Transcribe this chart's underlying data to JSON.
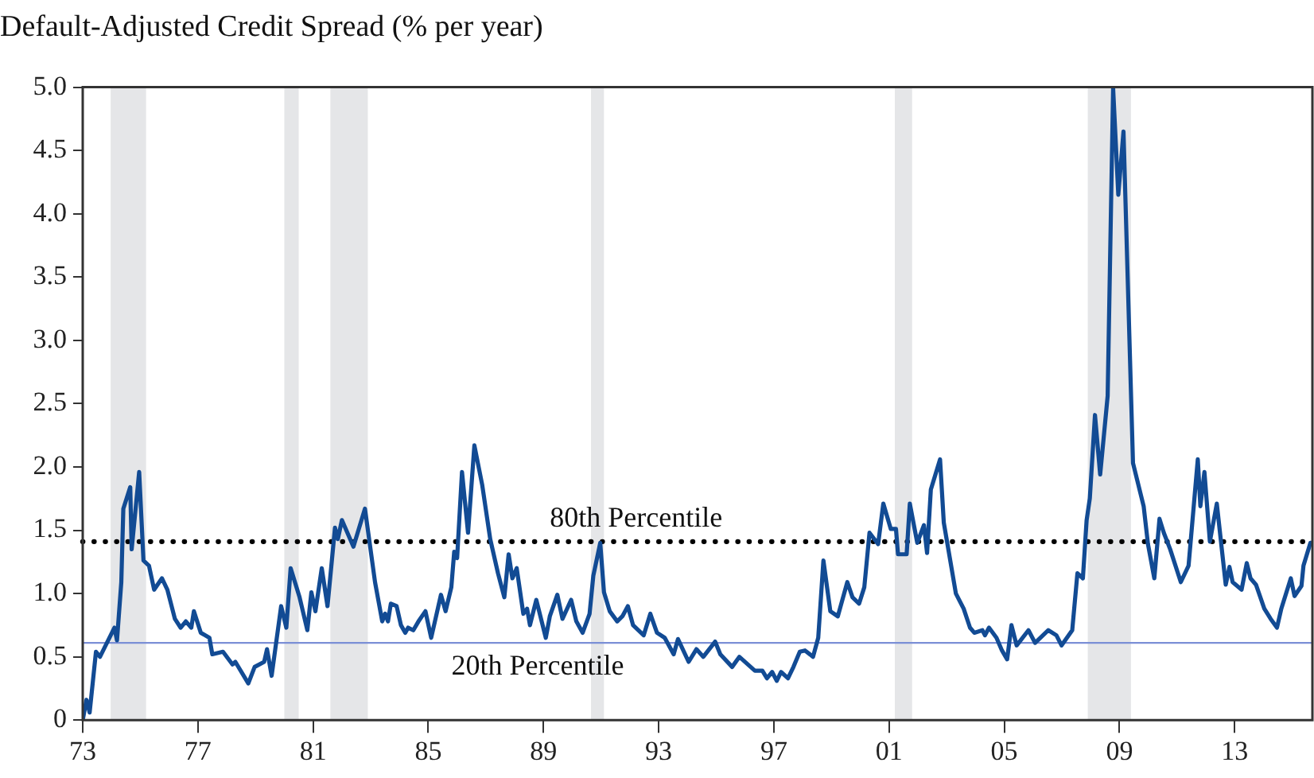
{
  "chart_data": {
    "type": "line",
    "title": "Default-Adjusted Credit Spread (% per year)",
    "x": [
      1973.0,
      1973.13,
      1973.24,
      1973.46,
      1973.6,
      1974.1,
      1974.19,
      1974.34,
      1974.41,
      1974.65,
      1974.7,
      1974.96,
      1975.11,
      1975.3,
      1975.48,
      1975.75,
      1975.94,
      1976.2,
      1976.4,
      1976.58,
      1976.77,
      1976.86,
      1977.1,
      1977.4,
      1977.5,
      1977.87,
      1978.2,
      1978.3,
      1978.75,
      1978.97,
      1979.3,
      1979.4,
      1979.56,
      1979.89,
      1980.07,
      1980.22,
      1980.53,
      1980.8,
      1980.94,
      1981.08,
      1981.3,
      1981.5,
      1981.76,
      1981.86,
      1982.0,
      1982.4,
      1982.8,
      1983.15,
      1983.4,
      1983.5,
      1983.6,
      1983.7,
      1983.9,
      1984.05,
      1984.2,
      1984.3,
      1984.48,
      1984.66,
      1984.9,
      1985.1,
      1985.44,
      1985.6,
      1985.8,
      1985.9,
      1986.0,
      1986.17,
      1986.38,
      1986.6,
      1986.87,
      1987.15,
      1987.42,
      1987.64,
      1987.79,
      1987.92,
      1988.07,
      1988.3,
      1988.43,
      1988.53,
      1988.75,
      1989.08,
      1989.22,
      1989.48,
      1989.66,
      1989.96,
      1990.14,
      1990.36,
      1990.6,
      1990.73,
      1990.97,
      1991.1,
      1991.3,
      1991.56,
      1991.74,
      1991.93,
      1992.11,
      1992.48,
      1992.71,
      1992.94,
      1993.21,
      1993.52,
      1993.67,
      1994.04,
      1994.31,
      1994.55,
      1994.96,
      1995.14,
      1995.55,
      1995.8,
      1996.34,
      1996.6,
      1996.76,
      1996.94,
      1997.1,
      1997.25,
      1997.49,
      1997.68,
      1997.9,
      1998.08,
      1998.36,
      1998.54,
      1998.72,
      1998.96,
      1999.22,
      1999.55,
      1999.73,
      1999.96,
      2000.14,
      2000.32,
      2000.62,
      2000.8,
      2001.06,
      2001.24,
      2001.31,
      2001.61,
      2001.72,
      2001.98,
      2002.21,
      2002.32,
      2002.45,
      2002.77,
      2002.9,
      2003.32,
      2003.59,
      2003.81,
      2003.96,
      2004.24,
      2004.33,
      2004.47,
      2004.73,
      2004.92,
      2005.1,
      2005.25,
      2005.43,
      2005.84,
      2006.07,
      2006.53,
      2006.81,
      2006.99,
      2007.36,
      2007.54,
      2007.73,
      2007.86,
      2007.97,
      2008.15,
      2008.33,
      2008.59,
      2008.78,
      2008.96,
      2009.14,
      2009.47,
      2009.84,
      2009.99,
      2010.21,
      2010.39,
      2010.54,
      2010.76,
      2011.13,
      2011.4,
      2011.72,
      2011.81,
      2011.95,
      2012.14,
      2012.38,
      2012.69,
      2012.82,
      2012.93,
      2013.24,
      2013.42,
      2013.55,
      2013.74,
      2014.03,
      2014.25,
      2014.47,
      2014.62,
      2014.95,
      2015.08,
      2015.32,
      2015.39,
      2015.63,
      2015.7
    ],
    "series": [
      {
        "color": "#124b94",
        "values": [
          0.0,
          0.16,
          0.06,
          0.54,
          0.5,
          0.73,
          0.63,
          1.09,
          1.67,
          1.84,
          1.35,
          1.96,
          1.26,
          1.22,
          1.03,
          1.12,
          1.03,
          0.8,
          0.73,
          0.78,
          0.73,
          0.86,
          0.69,
          0.65,
          0.52,
          0.54,
          0.44,
          0.46,
          0.29,
          0.42,
          0.46,
          0.56,
          0.35,
          0.9,
          0.73,
          1.2,
          0.97,
          0.71,
          1.01,
          0.86,
          1.2,
          0.9,
          1.52,
          1.43,
          1.58,
          1.37,
          1.67,
          1.09,
          0.78,
          0.84,
          0.78,
          0.92,
          0.9,
          0.75,
          0.69,
          0.73,
          0.71,
          0.78,
          0.86,
          0.65,
          0.99,
          0.86,
          1.05,
          1.33,
          1.28,
          1.96,
          1.48,
          2.17,
          1.86,
          1.43,
          1.16,
          0.97,
          1.31,
          1.12,
          1.2,
          0.84,
          0.88,
          0.75,
          0.95,
          0.65,
          0.82,
          0.99,
          0.8,
          0.95,
          0.78,
          0.69,
          0.84,
          1.14,
          1.4,
          1.01,
          0.86,
          0.78,
          0.82,
          0.9,
          0.75,
          0.67,
          0.84,
          0.69,
          0.65,
          0.52,
          0.64,
          0.46,
          0.56,
          0.5,
          0.62,
          0.52,
          0.42,
          0.5,
          0.39,
          0.39,
          0.33,
          0.38,
          0.31,
          0.38,
          0.33,
          0.42,
          0.54,
          0.55,
          0.5,
          0.65,
          1.26,
          0.86,
          0.82,
          1.09,
          0.97,
          0.92,
          1.05,
          1.48,
          1.39,
          1.71,
          1.51,
          1.51,
          1.31,
          1.31,
          1.71,
          1.4,
          1.54,
          1.32,
          1.82,
          2.06,
          1.56,
          1.0,
          0.88,
          0.73,
          0.69,
          0.71,
          0.67,
          0.73,
          0.65,
          0.55,
          0.48,
          0.75,
          0.59,
          0.71,
          0.61,
          0.71,
          0.67,
          0.59,
          0.71,
          1.16,
          1.12,
          1.58,
          1.75,
          2.41,
          1.94,
          2.56,
          4.99,
          4.15,
          4.65,
          2.03,
          1.69,
          1.39,
          1.12,
          1.59,
          1.48,
          1.35,
          1.09,
          1.22,
          2.06,
          1.69,
          1.96,
          1.41,
          1.71,
          1.07,
          1.21,
          1.09,
          1.03,
          1.24,
          1.12,
          1.07,
          0.88,
          0.8,
          0.73,
          0.88,
          1.12,
          0.98,
          1.06,
          1.22,
          1.4,
          1.4
        ]
      }
    ],
    "xlim": [
      1973,
      2015.7
    ],
    "xticks": [
      {
        "value": 1973,
        "label": "73"
      },
      {
        "value": 1977,
        "label": "77"
      },
      {
        "value": 1981,
        "label": "81"
      },
      {
        "value": 1985,
        "label": "85"
      },
      {
        "value": 1989,
        "label": "89"
      },
      {
        "value": 1993,
        "label": "93"
      },
      {
        "value": 1997,
        "label": "97"
      },
      {
        "value": 2001,
        "label": "01"
      },
      {
        "value": 2005,
        "label": "05"
      },
      {
        "value": 2009,
        "label": "09"
      },
      {
        "value": 2013,
        "label": "13"
      }
    ],
    "ylim": [
      0,
      5
    ],
    "yticks": [
      0,
      0.5,
      {
        "value": 1,
        "label": "1.0"
      },
      1.5,
      {
        "value": 2,
        "label": "2.0"
      },
      2.5,
      {
        "value": 3,
        "label": "3.0"
      },
      3.5,
      {
        "value": 4,
        "label": "4.0"
      },
      4.5,
      {
        "value": 5,
        "label": "5.0"
      }
    ],
    "ref_lines": [
      {
        "axis": "y",
        "value": 1.41,
        "label": "80th Percentile",
        "color": "#000000",
        "line_style": "dotted"
      },
      {
        "axis": "y",
        "value": 0.61,
        "label": "20th Percentile",
        "color": "#7b8fd6",
        "line_style": "solid"
      }
    ],
    "bands": [
      {
        "axis": "x",
        "from": 1973.97,
        "to": 1975.2,
        "color": "#e5e6e8"
      },
      {
        "axis": "x",
        "from": 1980.0,
        "to": 1980.5,
        "color": "#e5e6e8"
      },
      {
        "axis": "x",
        "from": 1981.6,
        "to": 1982.9,
        "color": "#e5e6e8"
      },
      {
        "axis": "x",
        "from": 1990.65,
        "to": 1991.1,
        "color": "#e5e6e8"
      },
      {
        "axis": "x",
        "from": 2001.2,
        "to": 2001.8,
        "color": "#e5e6e8"
      },
      {
        "axis": "x",
        "from": 2007.9,
        "to": 2009.4,
        "color": "#e5e6e8"
      }
    ],
    "grid": false,
    "legend": false,
    "marker": "none",
    "line_style": "solid"
  }
}
